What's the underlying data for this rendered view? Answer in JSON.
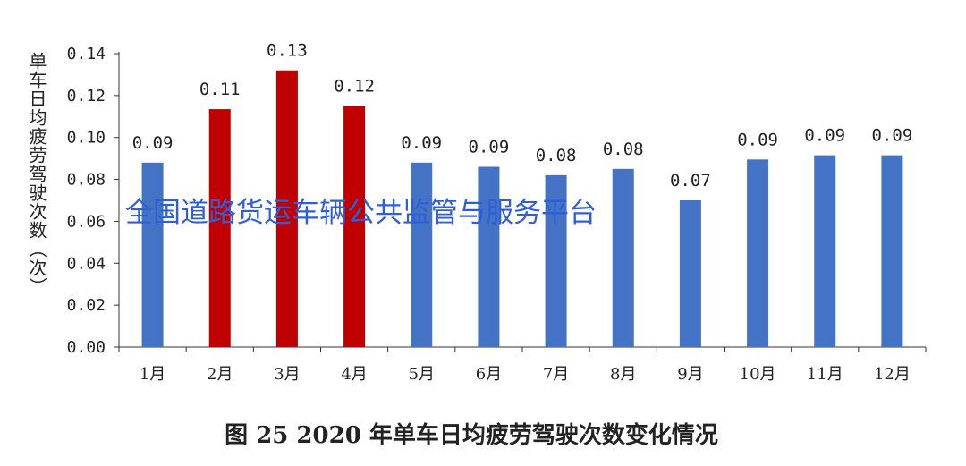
{
  "chart_data": {
    "type": "bar",
    "title": "图 25  2020 年单车日均疲劳驾驶次数变化情况",
    "ylabel": "单车日均疲劳驾驶次数（次）",
    "xlabel": "",
    "categories": [
      "1月",
      "2月",
      "3月",
      "4月",
      "5月",
      "6月",
      "7月",
      "8月",
      "9月",
      "10月",
      "11月",
      "12月"
    ],
    "values": [
      0.088,
      0.1135,
      0.132,
      0.115,
      0.088,
      0.086,
      0.082,
      0.085,
      0.07,
      0.0895,
      0.0915,
      0.0915
    ],
    "data_labels": [
      "0.09",
      "0.11",
      "0.13",
      "0.12",
      "0.09",
      "0.09",
      "0.08",
      "0.08",
      "0.07",
      "0.09",
      "0.09",
      "0.09"
    ],
    "highlight_indices": [
      1,
      2,
      3
    ],
    "ylim": [
      0,
      0.14
    ],
    "yticks": [
      "0.00",
      "0.02",
      "0.04",
      "0.06",
      "0.08",
      "0.10",
      "0.12",
      "0.14"
    ],
    "grid": false,
    "colors": {
      "default": "#4472C4",
      "highlight": "#C00000"
    }
  },
  "watermark": "全国道路货运车辆公共监管与服务平台"
}
